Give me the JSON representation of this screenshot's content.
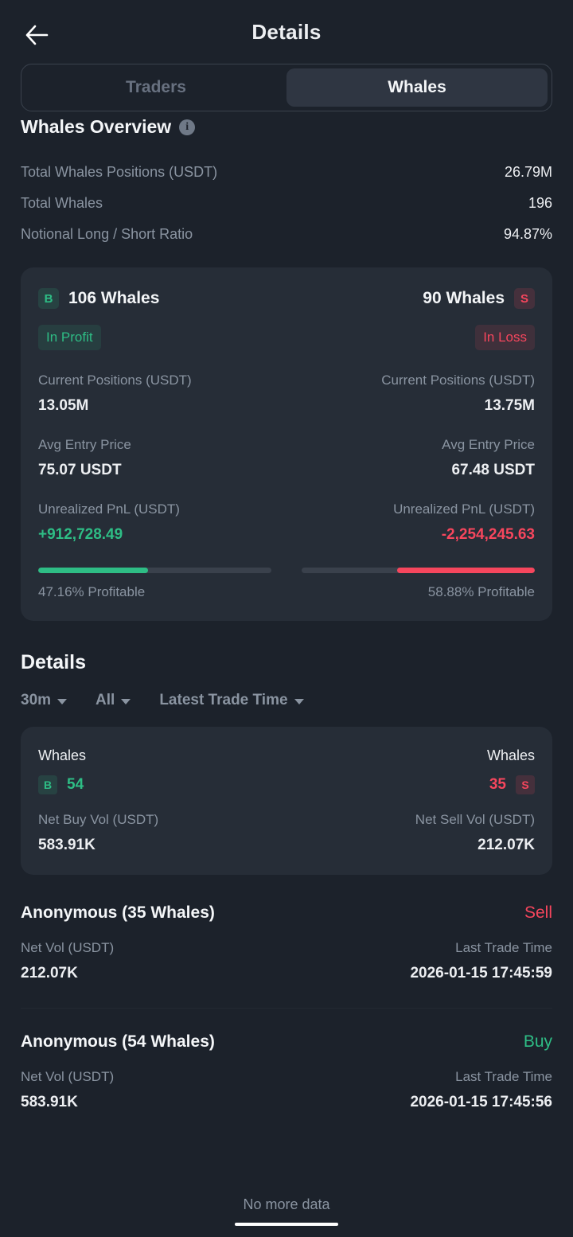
{
  "header": {
    "title": "Details"
  },
  "tabs": {
    "traders": "Traders",
    "whales": "Whales"
  },
  "overview": {
    "title": "Whales Overview",
    "rows": [
      {
        "label": "Total Whales Positions (USDT)",
        "value": "26.79M"
      },
      {
        "label": "Total Whales",
        "value": "196"
      },
      {
        "label": "Notional Long / Short Ratio",
        "value": "94.87%"
      }
    ]
  },
  "profit_card": {
    "long": {
      "badge": "B",
      "count": "106 Whales",
      "status": "In Profit",
      "positions_label": "Current Positions (USDT)",
      "positions": "13.05M",
      "entry_label": "Avg Entry Price",
      "entry": "75.07 USDT",
      "pnl_label": "Unrealized PnL (USDT)",
      "pnl": "+912,728.49",
      "profitable": "47.16% Profitable",
      "profitable_pct": 47.16
    },
    "short": {
      "badge": "S",
      "count": "90 Whales",
      "status": "In Loss",
      "positions_label": "Current Positions (USDT)",
      "positions": "13.75M",
      "entry_label": "Avg Entry Price",
      "entry": "67.48 USDT",
      "pnl_label": "Unrealized PnL (USDT)",
      "pnl": "-2,254,245.63",
      "profitable": "58.88% Profitable",
      "profitable_pct": 58.88
    }
  },
  "details": {
    "title": "Details",
    "filters": [
      {
        "label": "30m"
      },
      {
        "label": "All"
      },
      {
        "label": "Latest Trade Time"
      }
    ],
    "summary": {
      "buy_title": "Whales",
      "sell_title": "Whales",
      "buy_badge": "B",
      "buy_count": "54",
      "sell_count": "35",
      "sell_badge": "S",
      "buy_vol_label": "Net Buy Vol (USDT)",
      "buy_vol": "583.91K",
      "sell_vol_label": "Net Sell Vol (USDT)",
      "sell_vol": "212.07K"
    },
    "entries": [
      {
        "name": "Anonymous (35 Whales)",
        "side": "Sell",
        "vol_label": "Net Vol (USDT)",
        "vol": "212.07K",
        "time_label": "Last Trade Time",
        "time": "2026-01-15 17:45:59"
      },
      {
        "name": "Anonymous (54 Whales)",
        "side": "Buy",
        "vol_label": "Net Vol (USDT)",
        "vol": "583.91K",
        "time_label": "Last Trade Time",
        "time": "2026-01-15 17:45:56"
      }
    ],
    "footer": "No more data"
  },
  "colors": {
    "green": "#2EBD85",
    "red": "#F6465D",
    "background": "#1C222B",
    "card": "#262D37"
  }
}
